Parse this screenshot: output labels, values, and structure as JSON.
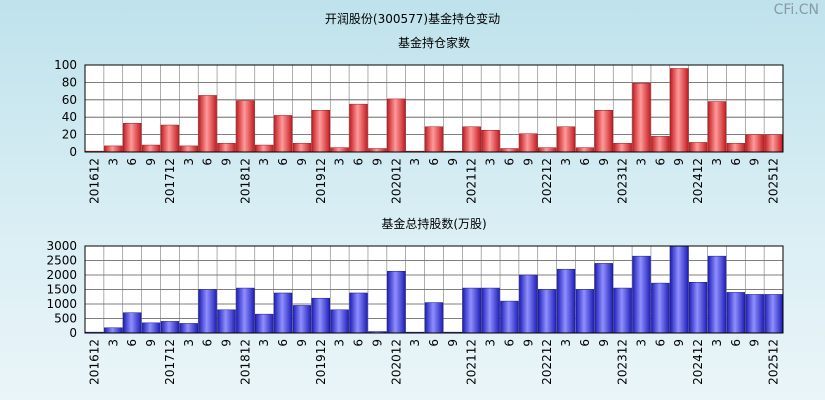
{
  "page": {
    "title": "开润股份(300577)基金持仓变动",
    "watermark": "CFi.CN"
  },
  "chart_data": [
    {
      "type": "bar",
      "title": "基金持仓家数",
      "color": "#e8363a",
      "ylim": [
        0,
        100
      ],
      "yticks": [
        0,
        20,
        40,
        60,
        80,
        100
      ],
      "grid": true,
      "categories": [
        "201612",
        "3",
        "6",
        "9",
        "201712",
        "3",
        "6",
        "9",
        "201812",
        "3",
        "6",
        "9",
        "201912",
        "3",
        "6",
        "9",
        "202012",
        "3",
        "6",
        "9",
        "202112",
        "3",
        "6",
        "9",
        "202212",
        "3",
        "6",
        "9",
        "202312",
        "3",
        "6",
        "9",
        "202412",
        "3",
        "6",
        "9",
        "202512"
      ],
      "values": [
        1,
        7,
        33,
        8,
        31,
        7,
        65,
        10,
        59,
        8,
        42,
        10,
        48,
        5,
        55,
        4,
        61,
        1,
        29,
        1,
        29,
        25,
        4,
        21,
        5,
        29,
        5,
        48,
        10,
        79,
        18,
        96,
        11,
        58,
        10,
        20,
        20
      ]
    },
    {
      "type": "bar",
      "title": "基金总持股数(万股)",
      "color": "#3a3ae8",
      "ylim": [
        0,
        3000
      ],
      "yticks": [
        0,
        500,
        1000,
        1500,
        2000,
        2500,
        3000
      ],
      "grid": true,
      "categories": [
        "201612",
        "3",
        "6",
        "9",
        "201712",
        "3",
        "6",
        "9",
        "201812",
        "3",
        "6",
        "9",
        "201912",
        "3",
        "6",
        "9",
        "202012",
        "3",
        "6",
        "9",
        "202112",
        "3",
        "6",
        "9",
        "202212",
        "3",
        "6",
        "9",
        "202312",
        "3",
        "6",
        "9",
        "202412",
        "3",
        "6",
        "9",
        "202512"
      ],
      "values": [
        30,
        180,
        700,
        350,
        400,
        330,
        1500,
        800,
        1550,
        650,
        1380,
        950,
        1200,
        800,
        1380,
        50,
        2130,
        30,
        1050,
        30,
        1550,
        1550,
        1100,
        2000,
        1500,
        2200,
        1500,
        2400,
        1550,
        2650,
        1720,
        3000,
        1750,
        2650,
        1400,
        1330,
        1330
      ]
    }
  ]
}
